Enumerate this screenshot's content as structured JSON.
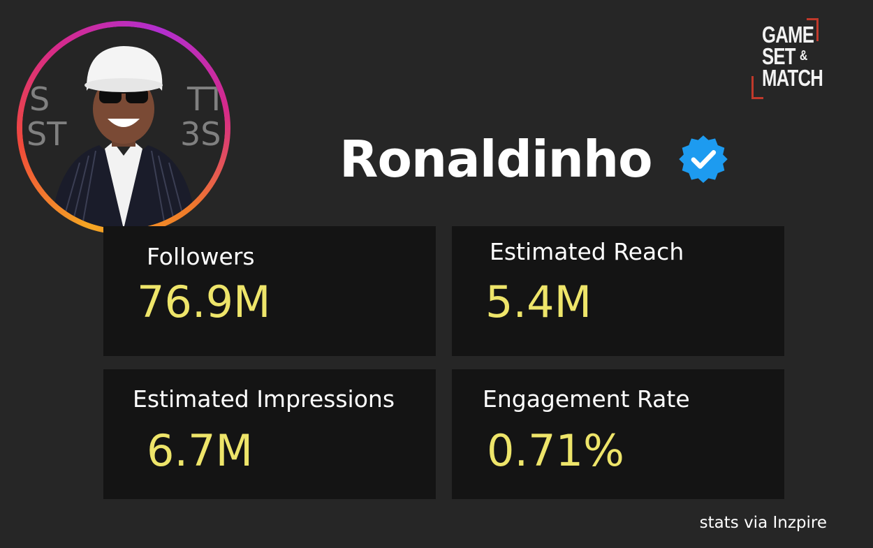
{
  "profile": {
    "name": "Ronaldinho",
    "verified": true
  },
  "brand": {
    "line1": "GAME",
    "line2": "SET",
    "amp": "&",
    "line3": "MATCH",
    "accent": "#c0392b"
  },
  "stats": [
    {
      "label": "Followers",
      "value": "76.9M"
    },
    {
      "label": "Estimated Reach",
      "value": "5.4M"
    },
    {
      "label": "Estimated Impressions",
      "value": "6.7M"
    },
    {
      "label": "Engagement Rate",
      "value": "0.71%"
    }
  ],
  "credit": "stats via Inzpire",
  "colors": {
    "background": "#262626",
    "card": "#141414",
    "value": "#eee56a",
    "verified_badge": "#1d9bf0"
  },
  "icons": {
    "verified": "verified-badge-icon",
    "avatar": "profile-photo"
  }
}
